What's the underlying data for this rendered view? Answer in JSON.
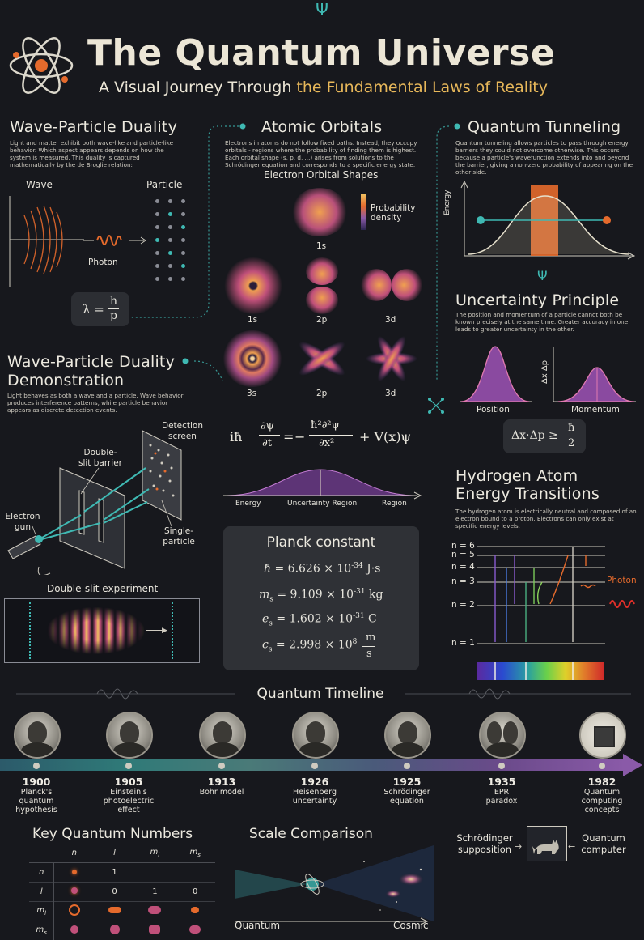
{
  "header": {
    "title": "The Quantum Universe",
    "subtitle_start": "A Visual Journey Through ",
    "subtitle_highlight": "the Fundamental Laws of Reality"
  },
  "wave_particle": {
    "title": "Wave-Particle Duality",
    "text": "Light and matter exhibit both wave-like and particle-like behavior. Which aspect appears depends on how the system is measured. This duality is captured mathematically by the de Broglie relation:",
    "wave_label": "Wave",
    "particle_label": "Particle",
    "photon_label": "Photon",
    "formula_lhs": "λ =",
    "formula_num": "h",
    "formula_den": "p"
  },
  "orbitals": {
    "title": "Atomic Orbitals",
    "text": "Electrons in atoms do not follow fixed paths. Instead, they occupy orbitals - regions where the probability of finding them is highest. Each orbital shape (s, p, d, ...) arises from solutions to the Schrödinger equation and corresponds to a specific energy state.",
    "shapes_title": "Electron Orbital Shapes",
    "legend": "Probability density",
    "labels": [
      "1s",
      "1s",
      "2p",
      "3d",
      "3s",
      "2p",
      "3d"
    ]
  },
  "tunneling": {
    "title": "Quantum Tunneling",
    "text": "Quantum tunneling allows particles to pass through energy barriers they could not overcome otherwise. This occurs because a particle's wavefunction extends into and beyond the barrier, giving a non-zero probability of appearing on the other side.",
    "axis": "Energy"
  },
  "uncertainty": {
    "title": "Uncertainty Principle",
    "text": "The position and momentum of a particle cannot both be known precisely at the same time. Greater accuracy in one leads to greater uncertainty in the other.",
    "position_label": "Position",
    "momentum_label": "Momentum",
    "axis": "Δx Δp",
    "formula_lhs": "Δx·Δp ≥",
    "formula_num": "ħ",
    "formula_den": "2"
  },
  "demo": {
    "title": "Wave-Particle Duality Demonstration",
    "text": "Light behaves as both a wave and a particle. Wave behavior produces interference patterns, while particle behavior appears as discrete detection events.",
    "detection_label": "Detection screen",
    "barrier_label": "Double-slit barrier",
    "gun_label": "Electron gun",
    "single_label": "Single-particle",
    "experiment_label": "Double-slit experiment"
  },
  "schrodinger": {
    "i_hbar": "iħ",
    "dpsi": "∂ψ",
    "dt": "∂t",
    "eq": "=",
    "minus": "−",
    "hbar2": "ħ²∂²ψ",
    "dx2": "∂x²",
    "plus_v": "+ V(x)ψ",
    "energy_label": "Energy",
    "region_label": "Uncertainty Region",
    "region2_label": "Region"
  },
  "planck": {
    "title": "Planck constant",
    "rows": [
      {
        "sym": "ħ",
        "sub": "",
        "val": "= 6.626 × 10",
        "exp": "-34",
        "unit": "J·s"
      },
      {
        "sym": "m",
        "sub": "s",
        "val": "= 9.109 × 10",
        "exp": "-31",
        "unit": "kg"
      },
      {
        "sym": "e",
        "sub": "s",
        "val": "= 1.602 × 10",
        "exp": "-31",
        "unit": "C"
      },
      {
        "sym": "c",
        "sub": "s",
        "val": "= 2.998 × 10",
        "exp": "8",
        "unit_num": "m",
        "unit_den": "s"
      }
    ]
  },
  "hydrogen": {
    "title_line1": "Hydrogen Atom",
    "title_line2": "Energy Transitions",
    "text": "The hydrogen atom is electrically neutral and composed of an electron bound to a proton. Electrons can only exist at specific energy levels.",
    "levels": [
      "n = 6",
      "n = 5",
      "n = 4",
      "n = 3",
      "n = 2",
      "n = 1"
    ],
    "photon_label": "Photon"
  },
  "timeline": {
    "title": "Quantum Timeline",
    "events": [
      {
        "year": "1900",
        "desc": "Planck's quantum hypothesis"
      },
      {
        "year": "1905",
        "desc": "Einstein's photoelectric effect"
      },
      {
        "year": "1913",
        "desc": "Bohr model"
      },
      {
        "year": "1926",
        "desc": "Heisenberg uncertainty"
      },
      {
        "year": "1925",
        "desc": "Schrödinger equation"
      },
      {
        "year": "1935",
        "desc": "EPR paradox"
      },
      {
        "year": "1982",
        "desc": "Quantum computing concepts"
      }
    ]
  },
  "quantum_numbers": {
    "title": "Key Quantum Numbers",
    "headers": [
      "n",
      "l",
      "m",
      "m"
    ],
    "header_subs": [
      "",
      "",
      "l",
      "s"
    ],
    "rows": [
      {
        "label": "n",
        "sub": "",
        "cells": [
          "",
          "1",
          "",
          ""
        ]
      },
      {
        "label": "l",
        "sub": "",
        "cells": [
          "",
          "0",
          "1",
          "0"
        ]
      },
      {
        "label": "m",
        "sub": "l",
        "cells": [
          "",
          "",
          "",
          ""
        ]
      },
      {
        "label": "m",
        "sub": "s",
        "cells": [
          "",
          "",
          "",
          ""
        ]
      }
    ]
  },
  "scale": {
    "title": "Scale Comparison",
    "left": "Quantum",
    "right": "Cosmic"
  },
  "cat": {
    "left": "Schrödinger supposition",
    "right": "Quantum computer"
  },
  "colors": {
    "accent_teal": "#3fb9b3",
    "accent_orange": "#e56a2c",
    "accent_purple": "#8a5aa8",
    "gold": "#e8b85a"
  }
}
